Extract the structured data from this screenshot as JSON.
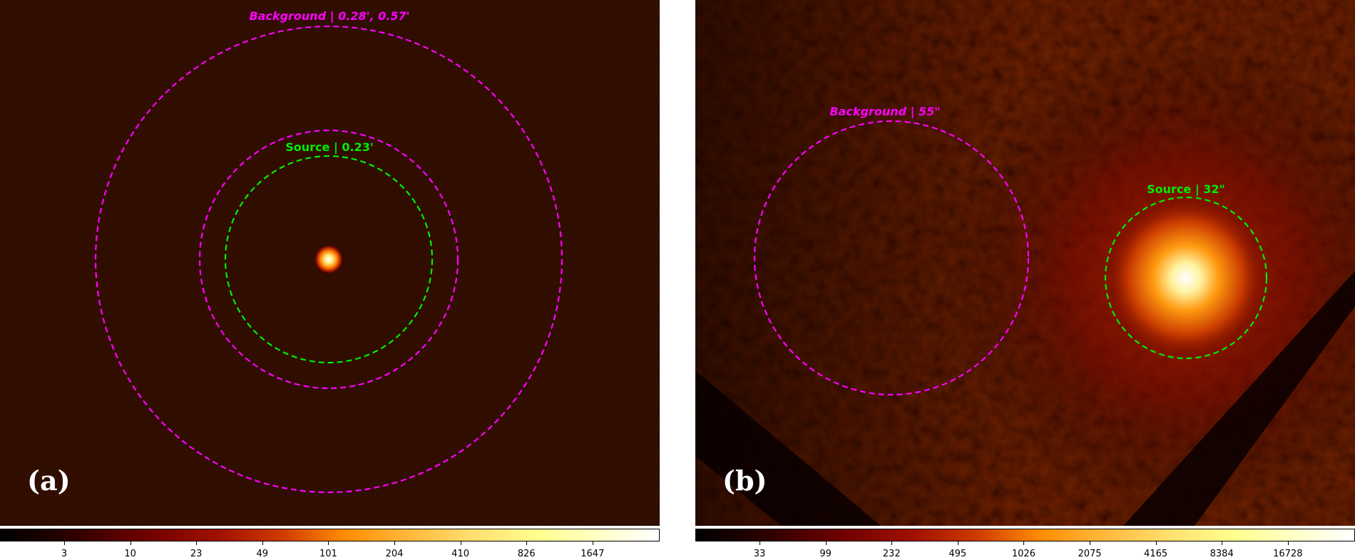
{
  "panels": [
    {
      "letter": "(a)",
      "background_label": "Background | 0.28', 0.57'",
      "source_label": "Source | 0.23'",
      "colorbar_ticks": [
        "3",
        "10",
        "23",
        "49",
        "101",
        "204",
        "410",
        "826",
        "1647"
      ]
    },
    {
      "letter": "(b)",
      "background_label": "Background | 55\"",
      "source_label": "Source | 32\"",
      "colorbar_ticks": [
        "33",
        "99",
        "232",
        "495",
        "1026",
        "2075",
        "4165",
        "8384",
        "16728"
      ]
    }
  ],
  "colors": {
    "background_region": "#ff00ff",
    "source_region": "#00ee00",
    "colormap": "hot"
  }
}
